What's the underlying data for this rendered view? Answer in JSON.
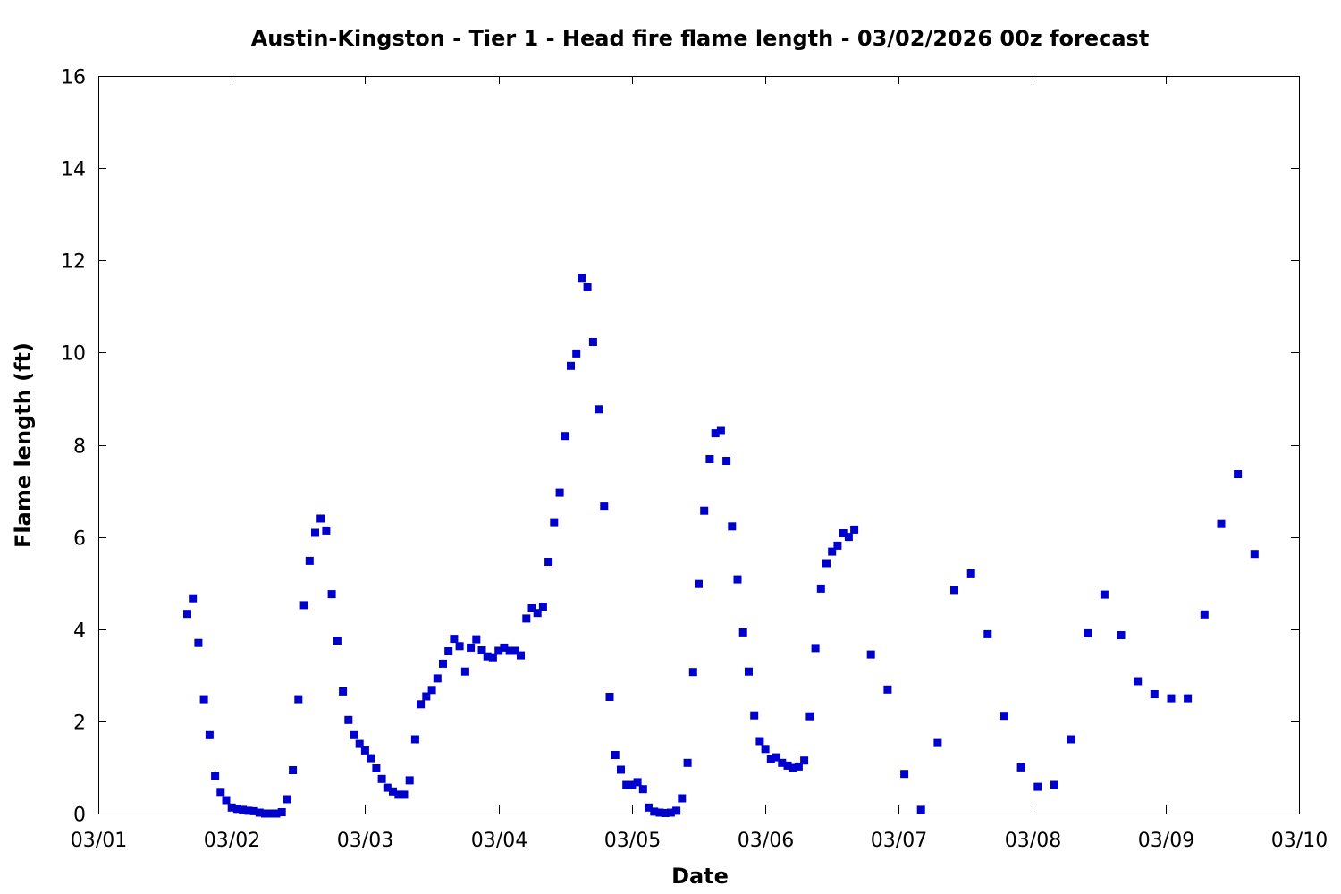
{
  "chart_data": {
    "type": "scatter",
    "title": "Austin-Kingston - Tier 1 - Head fire flame length - 03/02/2026 00z forecast",
    "xlabel": "Date",
    "ylabel": "Flame length (ft)",
    "x_ticks": [
      "03/01",
      "03/02",
      "03/03",
      "03/04",
      "03/05",
      "03/06",
      "03/07",
      "03/08",
      "03/09",
      "03/10"
    ],
    "xlim": [
      "2026-03-01",
      "2026-03-10"
    ],
    "ylim": [
      0,
      16
    ],
    "y_ticks": [
      0,
      2,
      4,
      6,
      8,
      10,
      12,
      14,
      16
    ],
    "grid": false,
    "marker": "square",
    "series_color": "#0000cc",
    "points": [
      [
        "2026-03-01 16:00",
        4.33
      ],
      [
        "2026-03-01 17:00",
        4.67
      ],
      [
        "2026-03-01 18:00",
        3.7
      ],
      [
        "2026-03-01 19:00",
        2.48
      ],
      [
        "2026-03-01 20:00",
        1.7
      ],
      [
        "2026-03-01 21:00",
        0.82
      ],
      [
        "2026-03-01 22:00",
        0.47
      ],
      [
        "2026-03-01 23:00",
        0.29
      ],
      [
        "2026-03-02 00:00",
        0.13
      ],
      [
        "2026-03-02 01:00",
        0.1
      ],
      [
        "2026-03-02 02:00",
        0.08
      ],
      [
        "2026-03-02 03:00",
        0.06
      ],
      [
        "2026-03-02 04:00",
        0.05
      ],
      [
        "2026-03-02 05:00",
        0.02
      ],
      [
        "2026-03-02 06:00",
        0.0
      ],
      [
        "2026-03-02 07:00",
        0.0
      ],
      [
        "2026-03-02 08:00",
        0.0
      ],
      [
        "2026-03-02 09:00",
        0.03
      ],
      [
        "2026-03-02 10:00",
        0.31
      ],
      [
        "2026-03-02 11:00",
        0.94
      ],
      [
        "2026-03-02 12:00",
        2.48
      ],
      [
        "2026-03-02 13:00",
        4.52
      ],
      [
        "2026-03-02 14:00",
        5.48
      ],
      [
        "2026-03-02 15:00",
        6.09
      ],
      [
        "2026-03-02 16:00",
        6.4
      ],
      [
        "2026-03-02 17:00",
        6.14
      ],
      [
        "2026-03-02 18:00",
        4.76
      ],
      [
        "2026-03-02 19:00",
        3.75
      ],
      [
        "2026-03-02 20:00",
        2.65
      ],
      [
        "2026-03-02 21:00",
        2.03
      ],
      [
        "2026-03-02 22:00",
        1.7
      ],
      [
        "2026-03-02 23:00",
        1.51
      ],
      [
        "2026-03-03 00:00",
        1.37
      ],
      [
        "2026-03-03 01:00",
        1.2
      ],
      [
        "2026-03-03 02:00",
        0.98
      ],
      [
        "2026-03-03 03:00",
        0.75
      ],
      [
        "2026-03-03 04:00",
        0.56
      ],
      [
        "2026-03-03 05:00",
        0.48
      ],
      [
        "2026-03-03 06:00",
        0.41
      ],
      [
        "2026-03-03 07:00",
        0.41
      ],
      [
        "2026-03-03 08:00",
        0.72
      ],
      [
        "2026-03-03 09:00",
        1.61
      ],
      [
        "2026-03-03 10:00",
        2.37
      ],
      [
        "2026-03-03 11:00",
        2.54
      ],
      [
        "2026-03-03 12:00",
        2.68
      ],
      [
        "2026-03-03 13:00",
        2.93
      ],
      [
        "2026-03-03 14:00",
        3.25
      ],
      [
        "2026-03-03 15:00",
        3.52
      ],
      [
        "2026-03-03 16:00",
        3.79
      ],
      [
        "2026-03-03 17:00",
        3.63
      ],
      [
        "2026-03-03 18:00",
        3.08
      ],
      [
        "2026-03-03 19:00",
        3.6
      ],
      [
        "2026-03-03 20:00",
        3.78
      ],
      [
        "2026-03-03 21:00",
        3.54
      ],
      [
        "2026-03-03 22:00",
        3.41
      ],
      [
        "2026-03-03 23:00",
        3.39
      ],
      [
        "2026-03-04 00:00",
        3.53
      ],
      [
        "2026-03-04 01:00",
        3.6
      ],
      [
        "2026-03-04 02:00",
        3.53
      ],
      [
        "2026-03-04 03:00",
        3.53
      ],
      [
        "2026-03-04 04:00",
        3.43
      ],
      [
        "2026-03-04 05:00",
        4.23
      ],
      [
        "2026-03-04 06:00",
        4.45
      ],
      [
        "2026-03-04 07:00",
        4.35
      ],
      [
        "2026-03-04 08:00",
        4.49
      ],
      [
        "2026-03-04 09:00",
        5.46
      ],
      [
        "2026-03-04 10:00",
        6.32
      ],
      [
        "2026-03-04 11:00",
        6.96
      ],
      [
        "2026-03-04 12:00",
        8.19
      ],
      [
        "2026-03-04 13:00",
        9.71
      ],
      [
        "2026-03-04 14:00",
        9.98
      ],
      [
        "2026-03-04 15:00",
        11.62
      ],
      [
        "2026-03-04 16:00",
        11.42
      ],
      [
        "2026-03-04 17:00",
        10.23
      ],
      [
        "2026-03-04 18:00",
        8.77
      ],
      [
        "2026-03-04 19:00",
        6.66
      ],
      [
        "2026-03-04 20:00",
        2.53
      ],
      [
        "2026-03-04 21:00",
        1.27
      ],
      [
        "2026-03-04 22:00",
        0.95
      ],
      [
        "2026-03-04 23:00",
        0.62
      ],
      [
        "2026-03-05 00:00",
        0.62
      ],
      [
        "2026-03-05 01:00",
        0.68
      ],
      [
        "2026-03-05 02:00",
        0.53
      ],
      [
        "2026-03-05 03:00",
        0.13
      ],
      [
        "2026-03-05 04:00",
        0.04
      ],
      [
        "2026-03-05 05:00",
        0.02
      ],
      [
        "2026-03-05 06:00",
        0.01
      ],
      [
        "2026-03-05 07:00",
        0.02
      ],
      [
        "2026-03-05 08:00",
        0.06
      ],
      [
        "2026-03-05 09:00",
        0.33
      ],
      [
        "2026-03-05 10:00",
        1.1
      ],
      [
        "2026-03-05 11:00",
        3.07
      ],
      [
        "2026-03-05 12:00",
        4.98
      ],
      [
        "2026-03-05 13:00",
        6.57
      ],
      [
        "2026-03-05 14:00",
        7.69
      ],
      [
        "2026-03-05 15:00",
        8.25
      ],
      [
        "2026-03-05 16:00",
        8.3
      ],
      [
        "2026-03-05 17:00",
        7.65
      ],
      [
        "2026-03-05 18:00",
        6.23
      ],
      [
        "2026-03-05 19:00",
        5.08
      ],
      [
        "2026-03-05 20:00",
        3.93
      ],
      [
        "2026-03-05 21:00",
        3.08
      ],
      [
        "2026-03-05 22:00",
        2.13
      ],
      [
        "2026-03-05 23:00",
        1.57
      ],
      [
        "2026-03-06 00:00",
        1.4
      ],
      [
        "2026-03-06 01:00",
        1.18
      ],
      [
        "2026-03-06 02:00",
        1.22
      ],
      [
        "2026-03-06 03:00",
        1.1
      ],
      [
        "2026-03-06 04:00",
        1.04
      ],
      [
        "2026-03-06 05:00",
        0.99
      ],
      [
        "2026-03-06 06:00",
        1.02
      ],
      [
        "2026-03-06 07:00",
        1.15
      ],
      [
        "2026-03-06 08:00",
        2.11
      ],
      [
        "2026-03-06 09:00",
        3.59
      ],
      [
        "2026-03-06 10:00",
        4.88
      ],
      [
        "2026-03-06 11:00",
        5.43
      ],
      [
        "2026-03-06 12:00",
        5.68
      ],
      [
        "2026-03-06 13:00",
        5.81
      ],
      [
        "2026-03-06 14:00",
        6.08
      ],
      [
        "2026-03-06 15:00",
        6.0
      ],
      [
        "2026-03-06 16:00",
        6.16
      ],
      [
        "2026-03-06 19:00",
        3.45
      ],
      [
        "2026-03-06 22:00",
        2.69
      ],
      [
        "2026-03-07 01:00",
        0.86
      ],
      [
        "2026-03-07 04:00",
        0.08
      ],
      [
        "2026-03-07 07:00",
        1.53
      ],
      [
        "2026-03-07 10:00",
        4.85
      ],
      [
        "2026-03-07 13:00",
        5.21
      ],
      [
        "2026-03-07 16:00",
        3.89
      ],
      [
        "2026-03-07 19:00",
        2.12
      ],
      [
        "2026-03-07 22:00",
        1.0
      ],
      [
        "2026-03-08 01:00",
        0.58
      ],
      [
        "2026-03-08 04:00",
        0.62
      ],
      [
        "2026-03-08 07:00",
        1.61
      ],
      [
        "2026-03-08 10:00",
        3.91
      ],
      [
        "2026-03-08 13:00",
        4.75
      ],
      [
        "2026-03-08 16:00",
        3.87
      ],
      [
        "2026-03-08 19:00",
        2.87
      ],
      [
        "2026-03-08 22:00",
        2.59
      ],
      [
        "2026-03-09 01:00",
        2.5
      ],
      [
        "2026-03-09 04:00",
        2.5
      ],
      [
        "2026-03-09 07:00",
        4.32
      ],
      [
        "2026-03-09 10:00",
        6.28
      ],
      [
        "2026-03-09 13:00",
        7.36
      ],
      [
        "2026-03-09 16:00",
        5.63
      ]
    ]
  }
}
